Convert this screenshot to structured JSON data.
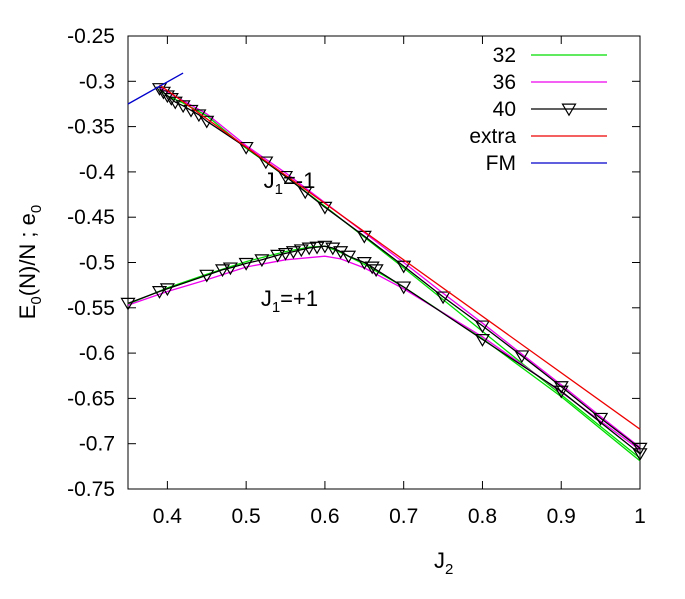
{
  "chart_data": {
    "type": "line",
    "xlabel": "J",
    "xlabel_sub": "2",
    "ylabel_parts": [
      "E",
      "0",
      "(N)/N ; e",
      "0"
    ],
    "xlim": [
      0.35,
      1.0
    ],
    "ylim": [
      -0.75,
      -0.25
    ],
    "x_ticks": [
      0.4,
      0.5,
      0.6,
      0.7,
      0.8,
      0.9,
      1.0
    ],
    "x_tick_labels": [
      "0.4",
      "0.5",
      "0.6",
      "0.7",
      "0.8",
      "0.9",
      "1"
    ],
    "y_ticks": [
      -0.25,
      -0.3,
      -0.35,
      -0.4,
      -0.45,
      -0.5,
      -0.55,
      -0.6,
      -0.65,
      -0.7,
      -0.75
    ],
    "y_tick_labels": [
      "-0.25",
      "-0.3",
      "-0.35",
      "-0.4",
      "-0.45",
      "-0.5",
      "-0.55",
      "-0.6",
      "-0.65",
      "-0.7",
      "-0.75"
    ],
    "grid": false,
    "legend_position": "top-right",
    "annotations": [
      {
        "main": "J",
        "sub": "1",
        "rest": "=-1",
        "x": 0.555,
        "y": -0.418
      },
      {
        "main": "J",
        "sub": "1",
        "rest": "=+1",
        "x": 0.555,
        "y": -0.548
      }
    ],
    "series": [
      {
        "name": "32",
        "color": "#00dd00",
        "marker": "none",
        "branches": [
          {
            "x": [
              0.39,
              0.4,
              0.42,
              0.45,
              0.5,
              0.55,
              0.6,
              0.65,
              0.7,
              0.75,
              0.8,
              0.85,
              0.9,
              0.95,
              1.0
            ],
            "y": [
              -0.309,
              -0.316,
              -0.324,
              -0.338,
              -0.374,
              -0.405,
              -0.438,
              -0.472,
              -0.506,
              -0.541,
              -0.576,
              -0.611,
              -0.646,
              -0.681,
              -0.716
            ]
          },
          {
            "x": [
              0.35,
              0.4,
              0.45,
              0.5,
              0.55,
              0.58,
              0.6,
              0.62,
              0.65,
              0.7,
              0.8,
              0.9,
              1.0
            ],
            "y": [
              -0.546,
              -0.528,
              -0.513,
              -0.499,
              -0.488,
              -0.483,
              -0.482,
              -0.489,
              -0.502,
              -0.527,
              -0.584,
              -0.648,
              -0.719
            ]
          }
        ]
      },
      {
        "name": "36",
        "color": "#ee00ee",
        "marker": "none",
        "branches": [
          {
            "x": [
              0.39,
              0.45,
              0.5,
              0.55,
              0.6,
              0.65,
              0.7,
              0.75,
              0.8,
              0.85,
              0.9,
              0.95,
              1.0
            ],
            "y": [
              -0.307,
              -0.336,
              -0.371,
              -0.401,
              -0.434,
              -0.467,
              -0.5,
              -0.534,
              -0.567,
              -0.601,
              -0.635,
              -0.67,
              -0.704
            ]
          },
          {
            "x": [
              0.35,
              0.4,
              0.45,
              0.5,
              0.55,
              0.6,
              0.62,
              0.65,
              0.7,
              0.8,
              0.9,
              1.0
            ],
            "y": [
              -0.547,
              -0.532,
              -0.519,
              -0.505,
              -0.497,
              -0.493,
              -0.496,
              -0.506,
              -0.529,
              -0.582,
              -0.643,
              -0.707
            ]
          }
        ]
      },
      {
        "name": "40",
        "color": "#000000",
        "marker": "triangle-down",
        "branches": [
          {
            "x": [
              0.39,
              0.395,
              0.4,
              0.405,
              0.41,
              0.42,
              0.43,
              0.44,
              0.45,
              0.5,
              0.525,
              0.55,
              0.575,
              0.6,
              0.65,
              0.7,
              0.75,
              0.8,
              0.85,
              0.9,
              0.95,
              1.0
            ],
            "y": [
              -0.308,
              -0.312,
              -0.316,
              -0.319,
              -0.323,
              -0.327,
              -0.332,
              -0.337,
              -0.344,
              -0.373,
              -0.389,
              -0.405,
              -0.422,
              -0.439,
              -0.471,
              -0.504,
              -0.538,
              -0.57,
              -0.603,
              -0.637,
              -0.672,
              -0.705
            ]
          },
          {
            "x": [
              0.35,
              0.39,
              0.4,
              0.45,
              0.47,
              0.48,
              0.5,
              0.52,
              0.54,
              0.55,
              0.56,
              0.57,
              0.58,
              0.59,
              0.6,
              0.61,
              0.62,
              0.63,
              0.65,
              0.66,
              0.665,
              0.7,
              0.8,
              0.9,
              1.0
            ],
            "y": [
              -0.545,
              -0.532,
              -0.529,
              -0.514,
              -0.508,
              -0.506,
              -0.501,
              -0.497,
              -0.492,
              -0.49,
              -0.488,
              -0.486,
              -0.484,
              -0.483,
              -0.482,
              -0.484,
              -0.488,
              -0.493,
              -0.5,
              -0.505,
              -0.508,
              -0.527,
              -0.585,
              -0.642,
              -0.711
            ]
          }
        ]
      },
      {
        "name": "extra",
        "color": "#ee0000",
        "marker": "none",
        "branches": [
          {
            "x": [
              0.39,
              1.0
            ],
            "y": [
              -0.304,
              -0.684
            ]
          }
        ]
      },
      {
        "name": "FM",
        "color": "#0000cc",
        "marker": "none",
        "branches": [
          {
            "x": [
              0.35,
              0.42
            ],
            "y": [
              -0.325,
              -0.291
            ]
          }
        ]
      }
    ]
  }
}
